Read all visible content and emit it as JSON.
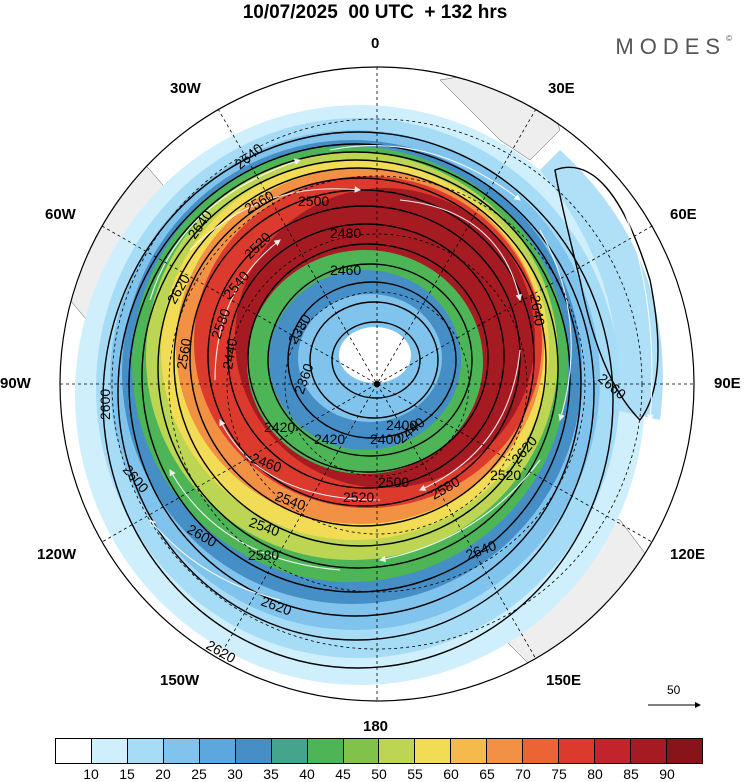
{
  "title": "10/07/2025  00 UTC  + 132 hrs",
  "logo": {
    "text": "MODES",
    "mark": "©"
  },
  "longitude_labels": [
    "0",
    "30E",
    "60E",
    "90E",
    "120E",
    "150E",
    "180",
    "150W",
    "120W",
    "90W",
    "60W",
    "30W"
  ],
  "contour_labels": [
    "2640",
    "2640",
    "2620",
    "2600",
    "2580",
    "2560",
    "2540",
    "2520",
    "2500",
    "2480",
    "2460",
    "2440",
    "2420",
    "2400",
    "2380",
    "2360",
    "2660",
    "2620",
    "2640",
    "2640",
    "2620",
    "2600",
    "2600",
    "2580",
    "2540",
    "2520",
    "2500",
    "2460",
    "2440",
    "2420",
    "2400",
    "2620",
    "2580",
    "2560",
    "2540",
    "2520"
  ],
  "wind_reference": {
    "value": "50"
  },
  "colorbar": {
    "ticks": [
      "10",
      "15",
      "20",
      "25",
      "30",
      "35",
      "40",
      "45",
      "50",
      "55",
      "60",
      "65",
      "70",
      "75",
      "80",
      "85",
      "90"
    ],
    "colors": [
      "#ffffff",
      "#cfeffc",
      "#a7dcf7",
      "#80c3ec",
      "#5ba7de",
      "#468fc6",
      "#45a58c",
      "#4db556",
      "#80c24a",
      "#bcd552",
      "#f2dc55",
      "#f5b94c",
      "#f29043",
      "#ec6435",
      "#db3a2d",
      "#c3232a",
      "#a61a22",
      "#881319"
    ]
  }
}
